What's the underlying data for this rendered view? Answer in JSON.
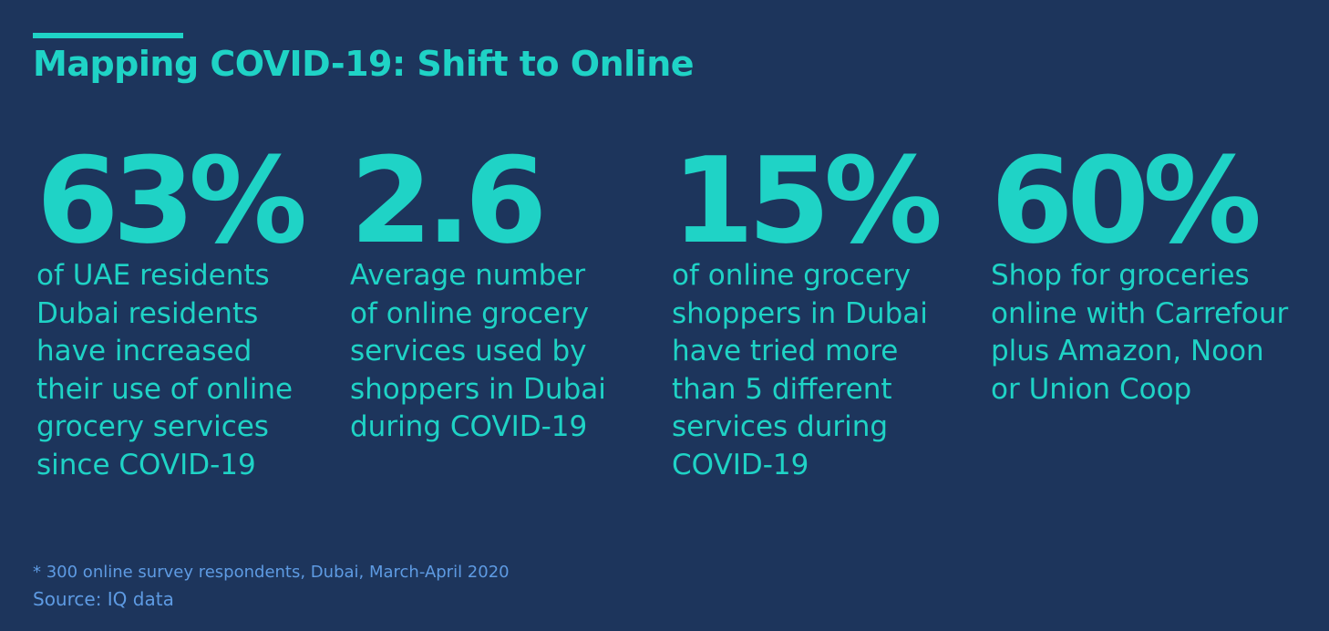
{
  "title": "Mapping COVID-19: Shift to Online",
  "colors": {
    "background": "#1d355c",
    "accent": "#1fd3c6",
    "footnote": "#5e9be3"
  },
  "stats": [
    {
      "value": "63%",
      "description": "of UAE residents\nDubai residents\nhave increased\ntheir use of online\ngrocery services\nsince COVID-19"
    },
    {
      "value": "2.6",
      "description": "Average number\nof online grocery\nservices used by\nshoppers in Dubai\nduring COVID-19"
    },
    {
      "value": "15%",
      "description": "of online grocery\nshoppers in Dubai\nhave tried more\nthan 5 different\nservices during\nCOVID-19"
    },
    {
      "value": "60%",
      "description": "Shop for groceries\nonline with Carrefour\nplus Amazon, Noon\nor Union Coop"
    }
  ],
  "footnote": "* 300 online survey respondents, Dubai, March-April 2020",
  "source": "Source: IQ data"
}
